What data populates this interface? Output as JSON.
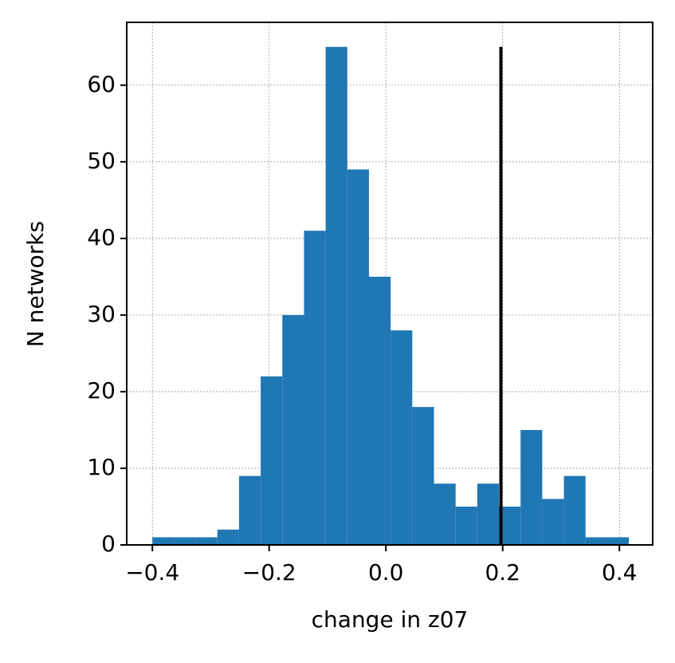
{
  "chart_data": {
    "type": "histogram",
    "xlabel": "change in z07",
    "ylabel": "N networks",
    "bins": [
      -0.4,
      -0.3629,
      -0.3258,
      -0.2887,
      -0.2516,
      -0.2145,
      -0.1774,
      -0.1403,
      -0.1032,
      -0.0661,
      -0.029,
      0.0081,
      0.0452,
      0.0823,
      0.1194,
      0.1565,
      0.1936,
      0.2307,
      0.2678,
      0.3049,
      0.342,
      0.3791,
      0.4162
    ],
    "counts": [
      1,
      1,
      1,
      2,
      9,
      22,
      30,
      41,
      65,
      49,
      35,
      28,
      18,
      8,
      5,
      8,
      5,
      15,
      6,
      9,
      1,
      1
    ],
    "color": "#1f77b4",
    "vline": {
      "x": 0.197,
      "ymin": 0,
      "ymax": 65,
      "color": "#000000"
    },
    "xlim": [
      -0.444,
      0.457
    ],
    "ylim": [
      0,
      68.2
    ],
    "xticks": [
      {
        "value": -0.4,
        "label": "−0.4"
      },
      {
        "value": -0.2,
        "label": "−0.2"
      },
      {
        "value": 0,
        "label": "0.0"
      },
      0.2,
      0.4
    ],
    "yticks": [
      0,
      10,
      20,
      30,
      40,
      50,
      60
    ],
    "grid": true
  }
}
